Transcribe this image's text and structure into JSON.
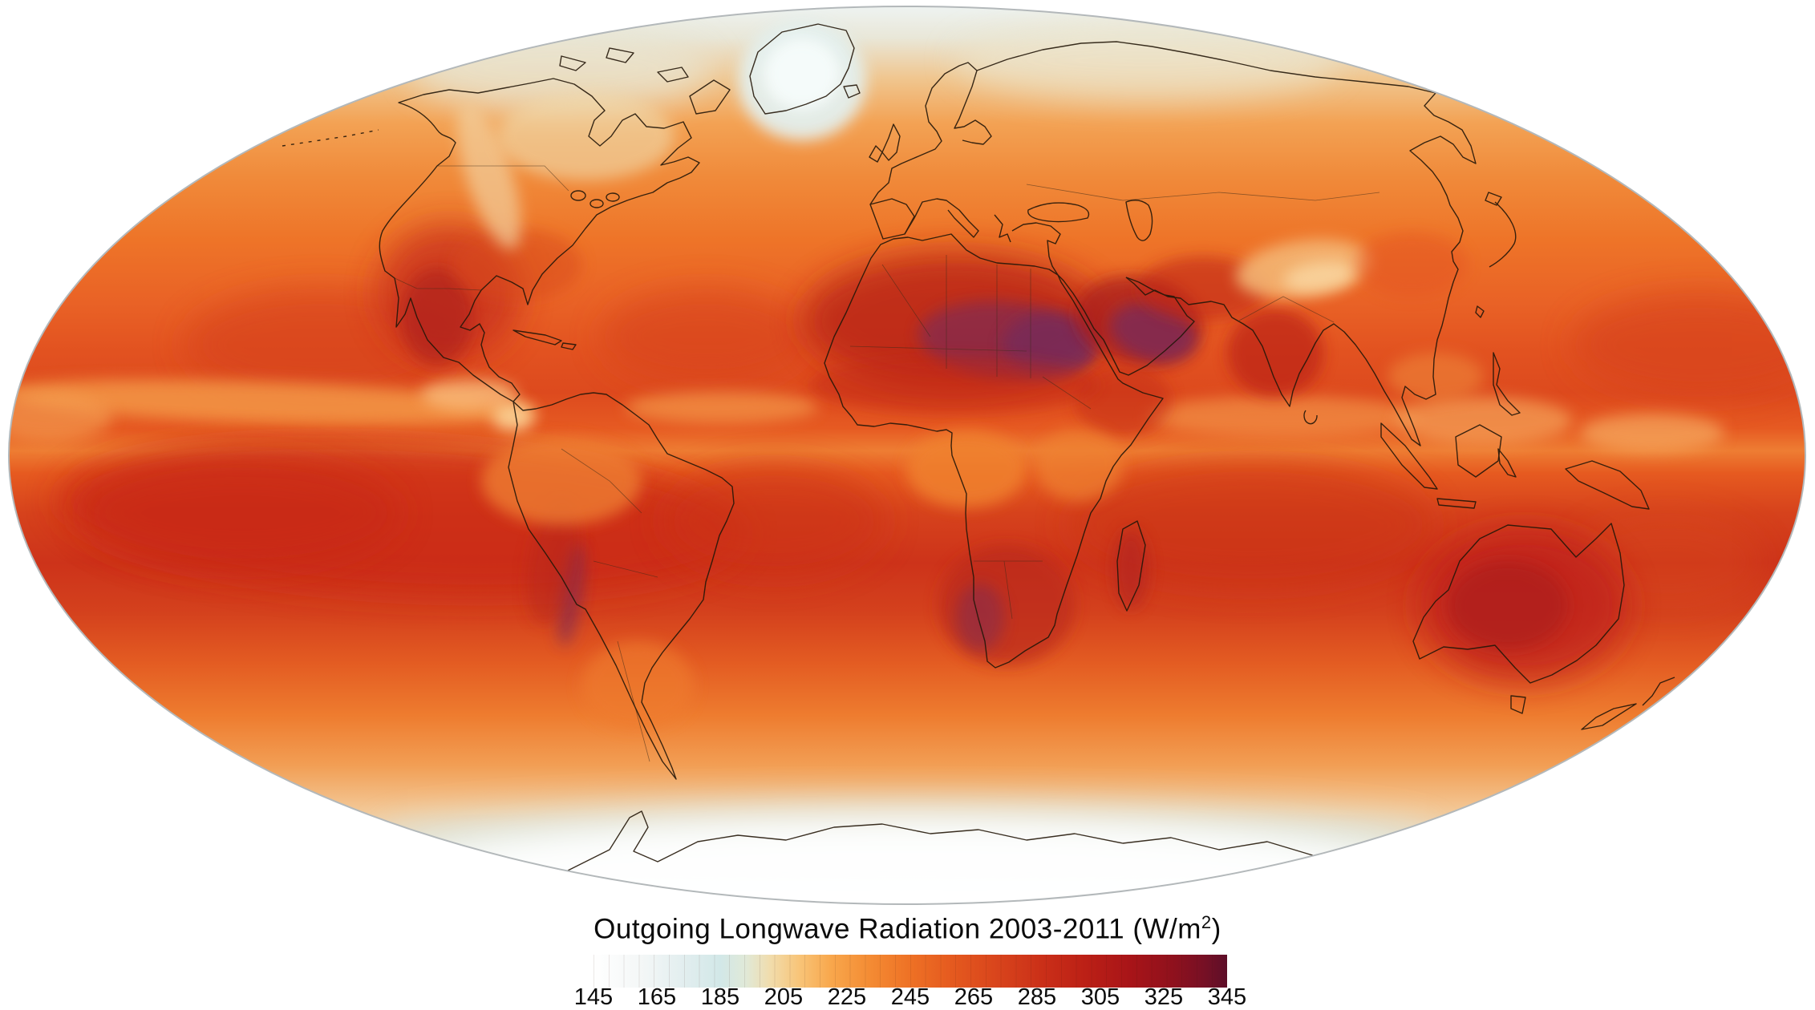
{
  "figure": {
    "title": {
      "text_prefix": "Outgoing Longwave Radiation 2003-2011 (W/m",
      "superscript": "2",
      "text_suffix": ")"
    },
    "colorbar": {
      "units": "W/m²",
      "min": 145,
      "max": 345,
      "tick_step": 20,
      "ticks": [
        "145",
        "165",
        "185",
        "205",
        "225",
        "245",
        "265",
        "285",
        "305",
        "325",
        "345"
      ],
      "gradient_stops": [
        {
          "value": 145,
          "color": "#ffffff"
        },
        {
          "value": 160,
          "color": "#f4f7f7"
        },
        {
          "value": 175,
          "color": "#e0edee"
        },
        {
          "value": 185,
          "color": "#d2e8e8"
        },
        {
          "value": 193,
          "color": "#e0e9d8"
        },
        {
          "value": 201,
          "color": "#f1dcab"
        },
        {
          "value": 210,
          "color": "#f8c478"
        },
        {
          "value": 220,
          "color": "#f8a74c"
        },
        {
          "value": 232,
          "color": "#f48c34"
        },
        {
          "value": 245,
          "color": "#ee7125"
        },
        {
          "value": 258,
          "color": "#e55a1f"
        },
        {
          "value": 272,
          "color": "#d9451c"
        },
        {
          "value": 287,
          "color": "#ca2f18"
        },
        {
          "value": 300,
          "color": "#bc2016"
        },
        {
          "value": 315,
          "color": "#a71418"
        },
        {
          "value": 328,
          "color": "#8f111d"
        },
        {
          "value": 338,
          "color": "#761025"
        },
        {
          "value": 345,
          "color": "#5d0e28"
        }
      ]
    },
    "map_colors": {
      "polar_ice": "#f7fcfb",
      "high_latitude_ocean": "#e8e5d4",
      "midlatitude_ocean": "#ee7428",
      "subtropical_ocean": "#cd331a",
      "itcz_band": "#f59c4a",
      "hot_desert": "#a81a1a",
      "offscale_desert_core": "#6d2a62",
      "coastline": "#2a1c0e",
      "ellipse_edge": "#b3b8ba"
    },
    "chart_data": {
      "type": "heatmap",
      "title": "Outgoing Longwave Radiation 2003-2011 (W/m²)",
      "units": "W/m²",
      "period": "2003-2011",
      "value_range": [
        145,
        345
      ],
      "colorbar_ticks": [
        145,
        165,
        185,
        205,
        225,
        245,
        265,
        285,
        305,
        325,
        345
      ],
      "layout": {
        "projection": "Mollweide (elliptical world map)",
        "legend_position": "bottom",
        "grid": false
      },
      "regional_values_estimated": [
        {
          "region": "Antarctica interior",
          "value": 145
        },
        {
          "region": "Arctic Ocean / high Arctic",
          "value": 170
        },
        {
          "region": "Greenland ice sheet",
          "value": 185
        },
        {
          "region": "Northern high-latitude land (Siberia, Canada)",
          "value": 205
        },
        {
          "region": "Tibetan Plateau",
          "value": 215
        },
        {
          "region": "Mid-latitude oceans",
          "value": 245
        },
        {
          "region": "ITCZ / equatorial Pacific convective band",
          "value": 235
        },
        {
          "region": "Amazon and Congo basins",
          "value": 240
        },
        {
          "region": "Subtropical South Pacific dry zone",
          "value": 290
        },
        {
          "region": "Subtropical South Atlantic / Indian Ocean",
          "value": 285
        },
        {
          "region": "Mexico / southwestern United States",
          "value": 300
        },
        {
          "region": "Southern Africa / Kalahari",
          "value": 295
        },
        {
          "region": "Australian interior",
          "value": 310
        },
        {
          "region": "India",
          "value": 300
        },
        {
          "region": "Sahara Desert",
          "value": 330
        },
        {
          "region": "Eastern Sahara / Sudan core",
          "value": 345
        },
        {
          "region": "Arabian Peninsula core",
          "value": 345
        },
        {
          "region": "Atacama / Andes coastal strip",
          "value": 340
        }
      ]
    }
  }
}
